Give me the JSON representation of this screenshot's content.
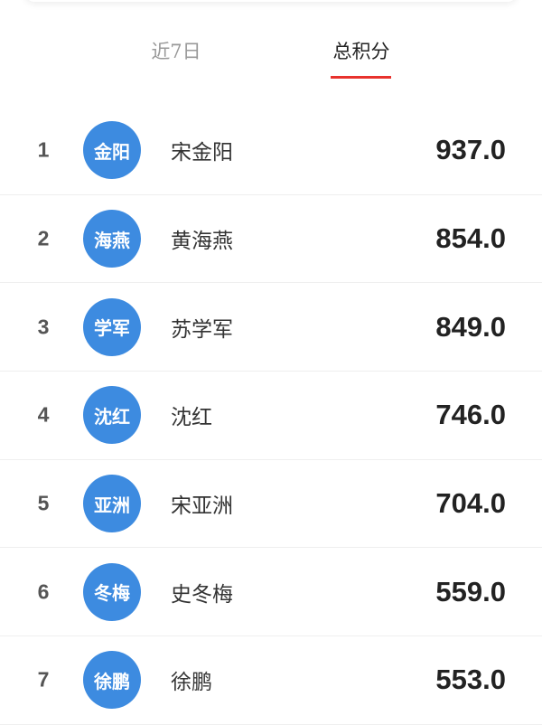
{
  "tabs": [
    {
      "label": "近7日",
      "active": false
    },
    {
      "label": "总积分",
      "active": true
    }
  ],
  "colors": {
    "accent": "#e8322d",
    "avatar": "#3d8be0"
  },
  "ranking": [
    {
      "rank": "1",
      "avatar": "金阳",
      "name": "宋金阳",
      "score": "937.0"
    },
    {
      "rank": "2",
      "avatar": "海燕",
      "name": "黄海燕",
      "score": "854.0"
    },
    {
      "rank": "3",
      "avatar": "学军",
      "name": "苏学军",
      "score": "849.0"
    },
    {
      "rank": "4",
      "avatar": "沈红",
      "name": "沈红",
      "score": "746.0"
    },
    {
      "rank": "5",
      "avatar": "亚洲",
      "name": "宋亚洲",
      "score": "704.0"
    },
    {
      "rank": "6",
      "avatar": "冬梅",
      "name": "史冬梅",
      "score": "559.0"
    },
    {
      "rank": "7",
      "avatar": "徐鹏",
      "name": "徐鹏",
      "score": "553.0"
    }
  ]
}
